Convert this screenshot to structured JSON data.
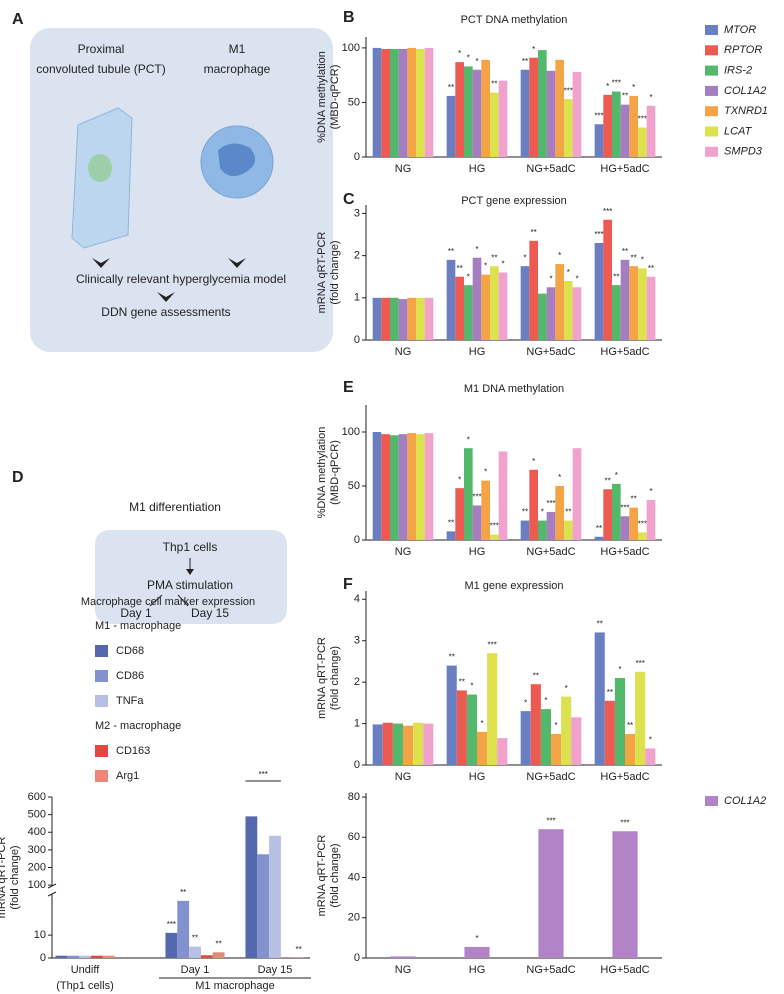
{
  "panel_a": {
    "label": "A",
    "left_title": [
      "Proximal",
      "convoluted tubule (PCT)"
    ],
    "right_title": [
      "M1",
      "macrophage"
    ],
    "step1": "Clinically relevant hyperglycemia model",
    "step2": "DDN gene assessments"
  },
  "panel_d": {
    "label": "D",
    "title": "M1 differentiation",
    "step1": "Thp1 cells",
    "step2": "PMA stimulation",
    "outcomes": [
      "Day 1",
      "Day 15"
    ]
  },
  "chart_data": [
    {
      "type": "bar",
      "panel": "B",
      "title": "PCT DNA methylation",
      "ylabel": [
        "%DNA methylation",
        "(MBD-qPCR)"
      ],
      "categories": [
        "NG",
        "HG",
        "NG+5adC",
        "HG+5adC"
      ],
      "ylim": [
        0,
        110
      ],
      "yticks": [
        0,
        50,
        100
      ],
      "legend": "right",
      "series": [
        {
          "name": "MTOR",
          "color": "#6a7fc1",
          "values": [
            100,
            56,
            80,
            30
          ],
          "significance": [
            null,
            "**",
            "**",
            "***"
          ]
        },
        {
          "name": "RPTOR",
          "color": "#ec5a52",
          "values": [
            99,
            87,
            91,
            57
          ],
          "significance": [
            null,
            "*",
            "*",
            "*"
          ]
        },
        {
          "name": "IRS-2",
          "color": "#53b86c",
          "values": [
            99,
            83,
            98,
            60
          ],
          "significance": [
            null,
            "*",
            null,
            "***"
          ]
        },
        {
          "name": "COL1A2",
          "color": "#a47ec0",
          "values": [
            99,
            80,
            79,
            48
          ],
          "significance": [
            null,
            "*",
            null,
            "**"
          ]
        },
        {
          "name": "TXNRD1",
          "color": "#f4a446",
          "values": [
            100,
            89,
            89,
            56
          ],
          "significance": [
            null,
            null,
            null,
            "*"
          ]
        },
        {
          "name": "LCAT",
          "color": "#dde14e",
          "values": [
            99,
            59,
            53,
            27
          ],
          "significance": [
            null,
            "**",
            "***",
            "***"
          ]
        },
        {
          "name": "SMPD3",
          "color": "#f0a1cc",
          "values": [
            100,
            70,
            78,
            47
          ],
          "significance": [
            null,
            null,
            null,
            "*"
          ]
        }
      ]
    },
    {
      "type": "bar",
      "panel": "C",
      "title": "PCT gene expression",
      "ylabel": [
        "mRNA qRT-PCR",
        "(fold change)"
      ],
      "categories": [
        "NG",
        "HG",
        "NG+5adC",
        "HG+5adC"
      ],
      "ylim": [
        0,
        3.2
      ],
      "yticks": [
        0,
        1,
        2,
        3
      ],
      "series": [
        {
          "color": "#6a7fc1",
          "values": [
            1.0,
            1.9,
            1.75,
            2.3
          ],
          "significance": [
            null,
            "**",
            "*",
            "***"
          ]
        },
        {
          "color": "#ec5a52",
          "values": [
            1.0,
            1.5,
            2.35,
            2.85
          ],
          "significance": [
            null,
            "**",
            "**",
            "***"
          ]
        },
        {
          "color": "#53b86c",
          "values": [
            1.0,
            1.3,
            1.1,
            1.3
          ],
          "significance": [
            null,
            "*",
            null,
            "**"
          ]
        },
        {
          "color": "#a47ec0",
          "values": [
            0.97,
            1.95,
            1.25,
            1.9
          ],
          "significance": [
            null,
            "*",
            "*",
            "**"
          ]
        },
        {
          "color": "#f4a446",
          "values": [
            1.0,
            1.55,
            1.8,
            1.75
          ],
          "significance": [
            null,
            "*",
            "*",
            "**"
          ]
        },
        {
          "color": "#dde14e",
          "values": [
            1.0,
            1.75,
            1.4,
            1.7
          ],
          "significance": [
            null,
            "**",
            "*",
            "*"
          ]
        },
        {
          "color": "#f0a1cc",
          "values": [
            1.0,
            1.6,
            1.25,
            1.5
          ],
          "significance": [
            null,
            "*",
            "*",
            "**"
          ]
        }
      ]
    },
    {
      "type": "bar",
      "panel": "E",
      "title": "M1 DNA methylation",
      "ylabel": [
        "%DNA methylation",
        "(MBD-qPCR)"
      ],
      "categories": [
        "NG",
        "HG",
        "NG+5adC",
        "HG+5adC"
      ],
      "ylim": [
        0,
        125
      ],
      "yticks": [
        0,
        50,
        100
      ],
      "series": [
        {
          "color": "#6a7fc1",
          "values": [
            100,
            8,
            18,
            3
          ],
          "significance": [
            null,
            "**",
            "**",
            "**"
          ]
        },
        {
          "color": "#ec5a52",
          "values": [
            98,
            48,
            65,
            47
          ],
          "significance": [
            null,
            "*",
            "*",
            "**"
          ]
        },
        {
          "color": "#53b86c",
          "values": [
            97,
            85,
            18,
            52
          ],
          "significance": [
            null,
            "*",
            "*",
            "*"
          ]
        },
        {
          "color": "#a47ec0",
          "values": [
            98,
            32,
            26,
            22
          ],
          "significance": [
            null,
            "***",
            "***",
            "***"
          ]
        },
        {
          "color": "#f4a446",
          "values": [
            99,
            55,
            50,
            30
          ],
          "significance": [
            null,
            "*",
            "*",
            "**"
          ]
        },
        {
          "color": "#dde14e",
          "values": [
            98,
            5,
            18,
            7
          ],
          "significance": [
            null,
            "***",
            "**",
            "***"
          ]
        },
        {
          "color": "#f0a1cc",
          "values": [
            99,
            82,
            85,
            37
          ],
          "significance": [
            null,
            null,
            null,
            "*"
          ]
        }
      ]
    },
    {
      "type": "bar",
      "panel": "F",
      "title": "M1 gene expression",
      "ylabel": [
        "mRNA qRT-PCR",
        "(fold change)"
      ],
      "categories": [
        "NG",
        "HG",
        "NG+5adC",
        "HG+5adC"
      ],
      "ylim": [
        0,
        4.2
      ],
      "yticks": [
        0,
        1,
        2,
        3,
        4
      ],
      "series": [
        {
          "color": "#6a7fc1",
          "values": [
            0.98,
            2.4,
            1.3,
            3.2
          ],
          "significance": [
            null,
            "**",
            "*",
            "**"
          ]
        },
        {
          "color": "#ec5a52",
          "values": [
            1.02,
            1.8,
            1.95,
            1.55
          ],
          "significance": [
            null,
            "**",
            "**",
            "**"
          ]
        },
        {
          "color": "#53b86c",
          "values": [
            1.0,
            1.7,
            1.35,
            2.1
          ],
          "significance": [
            null,
            "*",
            "*",
            "*"
          ]
        },
        {
          "color": "#f4a446",
          "values": [
            0.95,
            0.8,
            0.75,
            0.75
          ],
          "significance": [
            null,
            "*",
            "*",
            "**"
          ]
        },
        {
          "color": "#dde14e",
          "values": [
            1.02,
            2.7,
            1.65,
            2.25
          ],
          "significance": [
            null,
            "***",
            "*",
            "***"
          ]
        },
        {
          "color": "#f0a1cc",
          "values": [
            1.0,
            0.65,
            1.15,
            0.4
          ],
          "significance": [
            null,
            null,
            null,
            "*"
          ]
        }
      ]
    },
    {
      "type": "bar",
      "ylabel": [
        "mRNA qRT-PCR",
        "(fold change)"
      ],
      "categories": [
        "NG",
        "HG",
        "NG+5adC",
        "HG+5adC"
      ],
      "ylim": [
        0,
        82
      ],
      "yticks": [
        0,
        20,
        40,
        60,
        80
      ],
      "legend": "right",
      "series": [
        {
          "name": "COL1A2",
          "color": "#b283c6",
          "values": [
            0.8,
            5.5,
            64,
            63
          ],
          "significance": [
            null,
            "*",
            "***",
            "***"
          ]
        }
      ]
    },
    {
      "type": "bar",
      "title": "Macrophage cell marker expression",
      "ylabel": [
        "mRNA qRT-PCR",
        "(fold change)"
      ],
      "categories": [
        "Undiff",
        "Day 1",
        "Day 15"
      ],
      "x_sublabels": [
        "(Thp1 cells)",
        "M1 macrophage"
      ],
      "ylim": [
        0,
        600
      ],
      "ybreak": [
        28,
        95
      ],
      "yticks": [
        0,
        10,
        100,
        200,
        300,
        400,
        500,
        600
      ],
      "legend": "groups",
      "bracket_label": "***",
      "series": [
        {
          "name": "CD68",
          "group": "M1 - macrophage",
          "color": "#5567ad",
          "values": [
            1,
            11,
            490
          ],
          "significance": [
            null,
            "***",
            null
          ]
        },
        {
          "name": "CD86",
          "group": "M1 - macrophage",
          "color": "#8392cf",
          "values": [
            1,
            25,
            275
          ],
          "significance": [
            null,
            "**",
            null
          ]
        },
        {
          "name": "TNFa",
          "group": "M1 - macrophage",
          "color": "#b7c0e2",
          "values": [
            1,
            5,
            380
          ],
          "significance": [
            null,
            "**",
            null
          ]
        },
        {
          "name": "CD163",
          "group": "M2 - macrophage",
          "color": "#e0473f",
          "values": [
            1,
            1.2,
            0.1
          ],
          "significance": [
            null,
            null,
            null
          ]
        },
        {
          "name": "Arg1",
          "group": "M2 - macrophage",
          "color": "#ee8579",
          "values": [
            1,
            2.5,
            0.1
          ],
          "significance": [
            null,
            "**",
            "**"
          ]
        }
      ]
    }
  ]
}
